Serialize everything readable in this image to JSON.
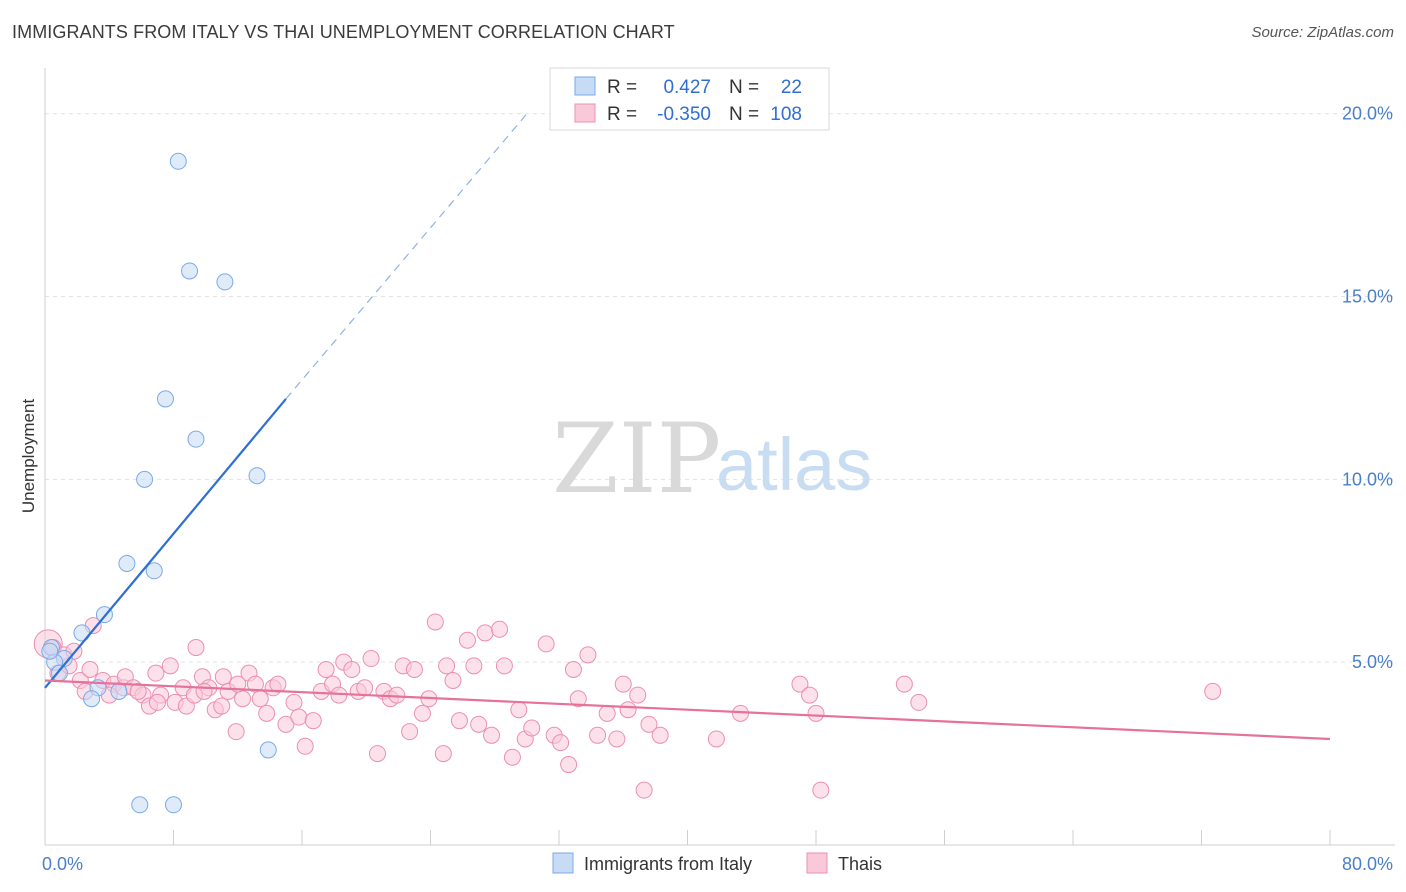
{
  "title": "IMMIGRANTS FROM ITALY VS THAI UNEMPLOYMENT CORRELATION CHART",
  "source": "Source: ZipAtlas.com",
  "watermark": {
    "zip": "ZIP",
    "atlas": "atlas"
  },
  "chart_data": {
    "type": "scatter",
    "ylabel": "Unemployment",
    "xlim": [
      0,
      80
    ],
    "ylim": [
      0,
      20
    ],
    "y_ticks": [
      {
        "value": 5,
        "label": "5.0%"
      },
      {
        "value": 10,
        "label": "10.0%"
      },
      {
        "value": 15,
        "label": "15.0%"
      },
      {
        "value": 20,
        "label": "20.0%"
      }
    ],
    "x_tick_labels": [
      {
        "value": 0,
        "label": "0.0%"
      },
      {
        "value": 80,
        "label": "80.0%"
      }
    ],
    "grid": true,
    "legend": [
      {
        "r_label": "R =",
        "r_value": "0.427",
        "n_label": "N =",
        "n_value": "22"
      },
      {
        "r_label": "R =",
        "r_value": "-0.350",
        "n_label": "N =",
        "n_value": "108"
      }
    ],
    "series": [
      {
        "name": "Immigrants from Italy",
        "color": "#7aaae8",
        "fill": "#c7dbf5",
        "trend": {
          "x0": 0,
          "y0": 4.3,
          "x1": 15,
          "y1": 12.2,
          "dash_to_x": 30,
          "dash_to_y": 20.0
        },
        "points": [
          [
            8.3,
            18.7
          ],
          [
            9.0,
            15.7
          ],
          [
            11.2,
            15.4
          ],
          [
            7.5,
            12.2
          ],
          [
            9.4,
            11.1
          ],
          [
            6.2,
            10.0
          ],
          [
            13.2,
            10.1
          ],
          [
            5.1,
            7.7
          ],
          [
            6.8,
            7.5
          ],
          [
            3.7,
            6.3
          ],
          [
            2.3,
            5.8
          ],
          [
            0.4,
            5.4
          ],
          [
            1.2,
            5.1
          ],
          [
            0.6,
            5.0
          ],
          [
            0.9,
            4.7
          ],
          [
            3.3,
            4.3
          ],
          [
            4.6,
            4.2
          ],
          [
            2.9,
            4.0
          ],
          [
            13.9,
            2.6
          ],
          [
            5.9,
            1.1
          ],
          [
            8.0,
            1.1
          ],
          [
            0.3,
            5.3
          ]
        ]
      },
      {
        "name": "Thais",
        "color": "#ec8fb0",
        "fill": "#f9c9d9",
        "trend": {
          "x0": 0,
          "y0": 4.5,
          "x1": 80,
          "y1": 2.9
        },
        "points": [
          [
            0.2,
            5.5
          ],
          [
            0.5,
            5.4
          ],
          [
            1.2,
            5.2
          ],
          [
            1.8,
            5.3
          ],
          [
            3.0,
            6.0
          ],
          [
            2.2,
            4.5
          ],
          [
            2.8,
            4.8
          ],
          [
            3.6,
            4.5
          ],
          [
            4.3,
            4.4
          ],
          [
            4.9,
            4.3
          ],
          [
            5.0,
            4.6
          ],
          [
            5.5,
            4.3
          ],
          [
            6.1,
            4.1
          ],
          [
            6.5,
            3.8
          ],
          [
            6.9,
            4.7
          ],
          [
            7.2,
            4.1
          ],
          [
            7.8,
            4.9
          ],
          [
            8.1,
            3.9
          ],
          [
            8.6,
            4.3
          ],
          [
            8.8,
            3.8
          ],
          [
            9.3,
            4.1
          ],
          [
            9.4,
            5.4
          ],
          [
            9.8,
            4.6
          ],
          [
            10.2,
            4.3
          ],
          [
            10.6,
            3.7
          ],
          [
            11.0,
            3.8
          ],
          [
            11.1,
            4.6
          ],
          [
            11.4,
            4.2
          ],
          [
            11.9,
            3.1
          ],
          [
            12.3,
            4.0
          ],
          [
            12.7,
            4.7
          ],
          [
            13.1,
            4.4
          ],
          [
            13.4,
            4.0
          ],
          [
            13.8,
            3.6
          ],
          [
            14.2,
            4.3
          ],
          [
            14.5,
            4.4
          ],
          [
            15.0,
            3.3
          ],
          [
            15.5,
            3.9
          ],
          [
            15.8,
            3.5
          ],
          [
            16.2,
            2.7
          ],
          [
            16.7,
            3.4
          ],
          [
            17.2,
            4.2
          ],
          [
            17.5,
            4.8
          ],
          [
            17.9,
            4.4
          ],
          [
            18.3,
            4.1
          ],
          [
            18.6,
            5.0
          ],
          [
            19.1,
            4.8
          ],
          [
            19.5,
            4.2
          ],
          [
            19.9,
            4.3
          ],
          [
            20.3,
            5.1
          ],
          [
            20.7,
            2.5
          ],
          [
            21.1,
            4.2
          ],
          [
            21.5,
            4.0
          ],
          [
            21.9,
            4.1
          ],
          [
            22.3,
            4.9
          ],
          [
            22.7,
            3.1
          ],
          [
            23.0,
            4.8
          ],
          [
            23.5,
            3.6
          ],
          [
            23.9,
            4.0
          ],
          [
            24.3,
            6.1
          ],
          [
            24.8,
            2.5
          ],
          [
            25.0,
            4.9
          ],
          [
            25.4,
            4.5
          ],
          [
            25.8,
            3.4
          ],
          [
            26.3,
            5.6
          ],
          [
            26.7,
            4.9
          ],
          [
            27.0,
            3.3
          ],
          [
            27.4,
            5.8
          ],
          [
            27.8,
            3.0
          ],
          [
            28.3,
            5.9
          ],
          [
            28.6,
            4.9
          ],
          [
            29.1,
            2.4
          ],
          [
            29.5,
            3.7
          ],
          [
            29.9,
            2.9
          ],
          [
            30.3,
            3.2
          ],
          [
            31.2,
            5.5
          ],
          [
            31.7,
            3.0
          ],
          [
            32.1,
            2.8
          ],
          [
            32.6,
            2.2
          ],
          [
            32.9,
            4.8
          ],
          [
            33.2,
            4.0
          ],
          [
            33.8,
            5.2
          ],
          [
            34.4,
            3.0
          ],
          [
            35.0,
            3.6
          ],
          [
            35.6,
            2.9
          ],
          [
            36.0,
            4.4
          ],
          [
            36.3,
            3.7
          ],
          [
            36.9,
            4.1
          ],
          [
            37.3,
            1.5
          ],
          [
            37.6,
            3.3
          ],
          [
            38.3,
            3.0
          ],
          [
            41.8,
            2.9
          ],
          [
            43.3,
            3.6
          ],
          [
            47.0,
            4.4
          ],
          [
            47.6,
            4.1
          ],
          [
            48.0,
            3.6
          ],
          [
            48.3,
            1.5
          ],
          [
            53.5,
            4.4
          ],
          [
            54.4,
            3.9
          ],
          [
            72.7,
            4.2
          ],
          [
            0.8,
            4.7
          ],
          [
            1.5,
            4.9
          ],
          [
            2.5,
            4.2
          ],
          [
            4.0,
            4.1
          ],
          [
            5.8,
            4.2
          ],
          [
            7.0,
            3.9
          ],
          [
            9.9,
            4.2
          ],
          [
            12.0,
            4.4
          ]
        ]
      }
    ]
  }
}
